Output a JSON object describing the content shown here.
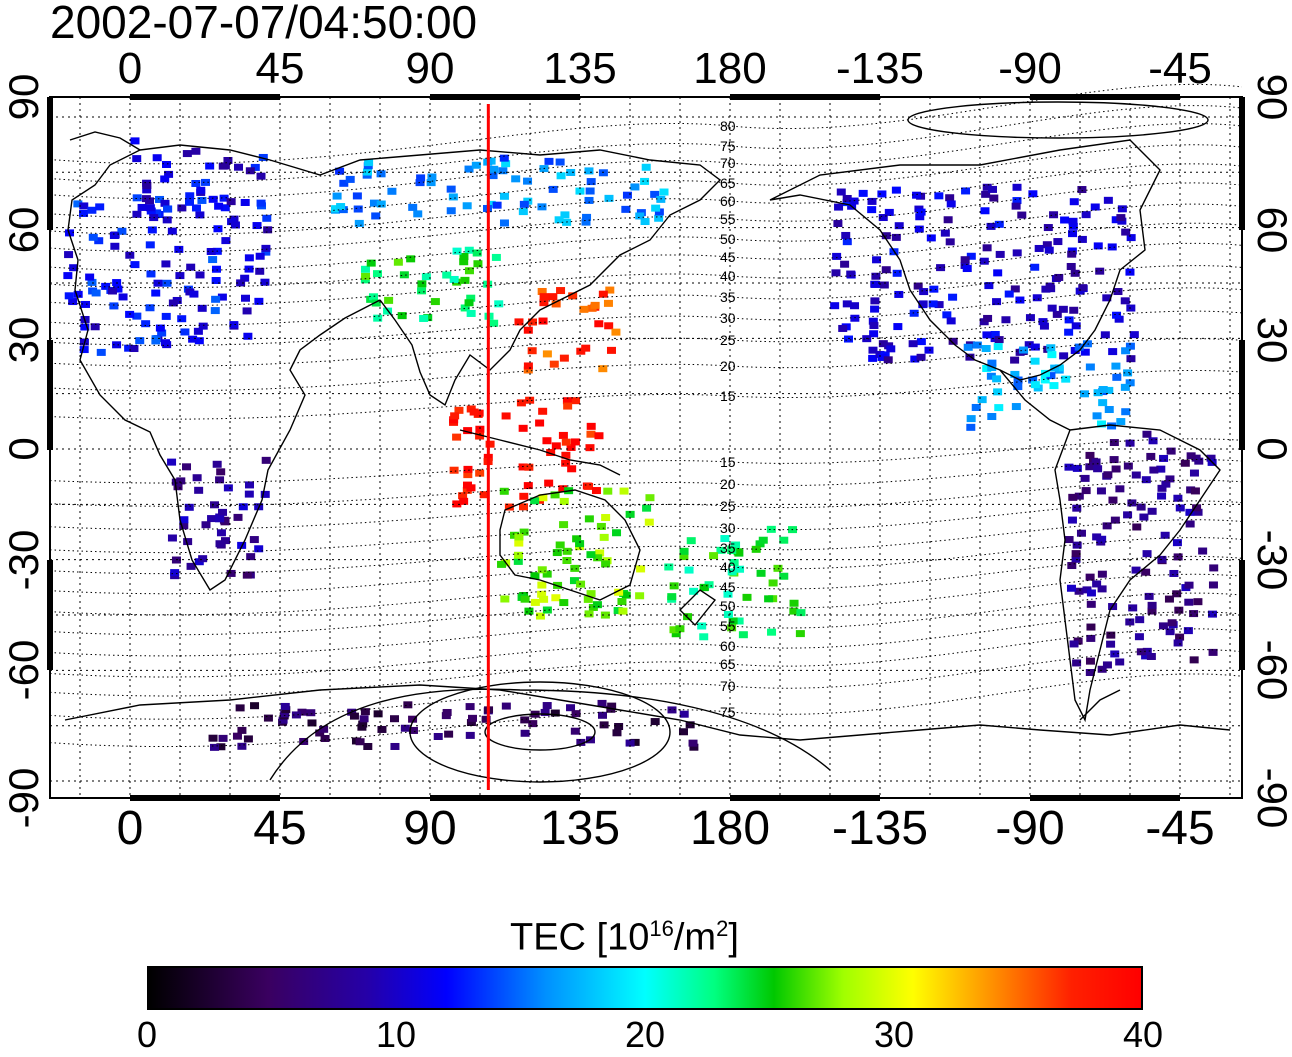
{
  "timestamp": "2002-07-07/04:50:00",
  "map": {
    "lon_ticks_top": [
      "0",
      "45",
      "90",
      "135",
      "180",
      "-135",
      "-90",
      "-45"
    ],
    "lon_ticks_bottom": [
      "0",
      "45",
      "90",
      "135",
      "180",
      "-135",
      "-90",
      "-45"
    ],
    "lat_ticks": [
      "90",
      "60",
      "30",
      "0",
      "-30",
      "-60",
      "-90"
    ],
    "contour_labels": [
      "80",
      "75",
      "70",
      "65",
      "60",
      "55",
      "50",
      "45",
      "40",
      "35",
      "30",
      "25",
      "20",
      "15",
      "15",
      "20",
      "25",
      "30",
      "35",
      "40",
      "45",
      "50",
      "55",
      "60",
      "65",
      "70",
      "75"
    ],
    "meridian_line": {
      "longitude": 107.5,
      "color": "#ff0000"
    },
    "tec_regions": [
      {
        "name": "europe",
        "lon": [
          -20,
          40
        ],
        "lat": [
          27,
          70
        ],
        "tec": 12
      },
      {
        "name": "scandinavia",
        "lon": [
          0,
          40
        ],
        "lat": [
          60,
          85
        ],
        "tec": 11
      },
      {
        "name": "central-asia",
        "lon": [
          65,
          110
        ],
        "lat": [
          35,
          55
        ],
        "tec": 24
      },
      {
        "name": "siberia",
        "lon": [
          60,
          160
        ],
        "lat": [
          62,
          80
        ],
        "tec": 16
      },
      {
        "name": "japan-east-asia",
        "lon": [
          115,
          145
        ],
        "lat": [
          22,
          45
        ],
        "tec": 37
      },
      {
        "name": "southeast-asia",
        "lon": [
          95,
          140
        ],
        "lat": [
          -15,
          15
        ],
        "tec": 39
      },
      {
        "name": "australia",
        "lon": [
          110,
          155
        ],
        "lat": [
          -45,
          -10
        ],
        "tec": 27
      },
      {
        "name": "new-zealand-pacific",
        "lon": [
          160,
          200
        ],
        "lat": [
          -50,
          -20
        ],
        "tec": 24
      },
      {
        "name": "north-america",
        "lon": [
          -150,
          -60
        ],
        "lat": [
          25,
          72
        ],
        "tec": 10
      },
      {
        "name": "central-america",
        "lon": [
          -110,
          -60
        ],
        "lat": [
          5,
          30
        ],
        "tec": 17
      },
      {
        "name": "south-america",
        "lon": [
          -80,
          -35
        ],
        "lat": [
          -60,
          5
        ],
        "tec": 7
      },
      {
        "name": "africa",
        "lon": [
          10,
          40
        ],
        "lat": [
          -35,
          0
        ],
        "tec": 8
      },
      {
        "name": "antarctica",
        "lon": [
          20,
          170
        ],
        "lat": [
          -80,
          -68
        ],
        "tec": 5
      }
    ]
  },
  "colorbar": {
    "title_prefix": "TEC  [10",
    "title_exp1": "16",
    "title_mid": "/m",
    "title_exp2": "2",
    "title_suffix": "]",
    "ticks": [
      "0",
      "10",
      "20",
      "30",
      "40"
    ],
    "range": [
      0,
      40
    ]
  }
}
